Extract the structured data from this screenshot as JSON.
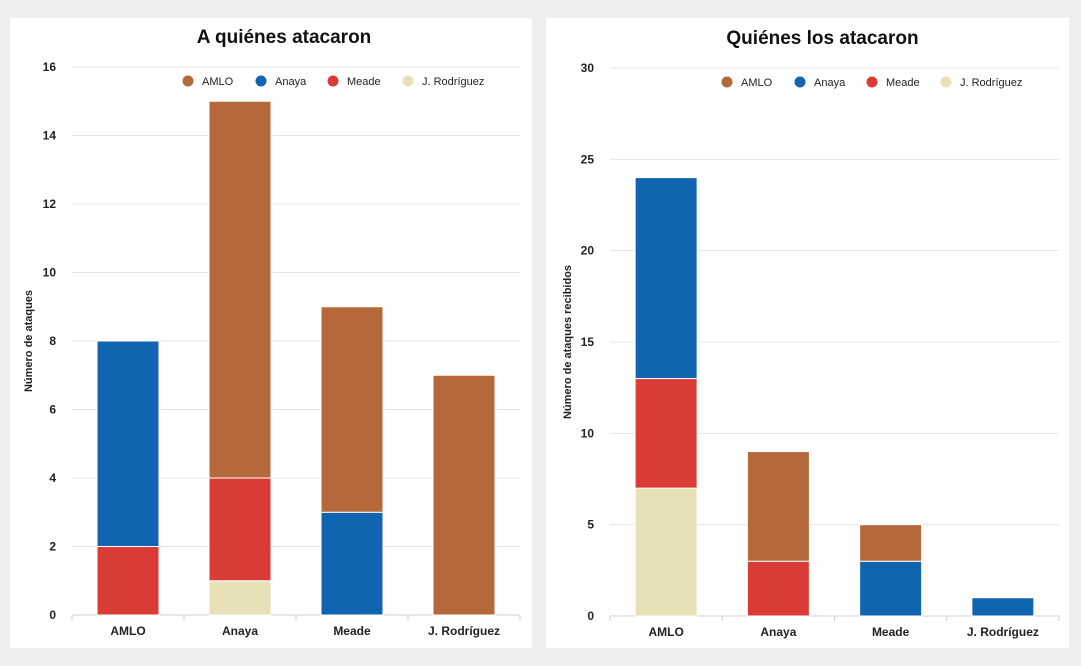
{
  "chart_data": [
    {
      "type": "bar",
      "stacked": true,
      "title": "A quiénes atacaron",
      "xlabel": "",
      "ylabel": "Número de ataques",
      "categories": [
        "AMLO",
        "Anaya",
        "Meade",
        "J. Rodríguez"
      ],
      "yticks": [
        0,
        2,
        4,
        6,
        8,
        10,
        12,
        14,
        16
      ],
      "ylim": [
        0,
        16
      ],
      "legend_position": "top-right",
      "series": [
        {
          "name": "J. Rodríguez",
          "color": "#e8e0b6",
          "values": [
            0,
            1,
            0,
            0
          ]
        },
        {
          "name": "Meade",
          "color": "#d93c35",
          "values": [
            2,
            3,
            0,
            0
          ]
        },
        {
          "name": "Anaya",
          "color": "#1064b0",
          "values": [
            6,
            0,
            3,
            0
          ]
        },
        {
          "name": "AMLO",
          "color": "#b5683a",
          "values": [
            0,
            11,
            6,
            7
          ]
        }
      ],
      "legend": [
        "AMLO",
        "Anaya",
        "Meade",
        "J. Rodríguez"
      ]
    },
    {
      "type": "bar",
      "stacked": true,
      "title": "Quiénes los atacaron",
      "xlabel": "",
      "ylabel": "Número de ataques recibidos",
      "categories": [
        "AMLO",
        "Anaya",
        "Meade",
        "J. Rodríguez"
      ],
      "yticks": [
        0,
        5,
        10,
        15,
        20,
        25,
        30
      ],
      "ylim": [
        0,
        30
      ],
      "legend_position": "top-right",
      "series": [
        {
          "name": "J. Rodríguez",
          "color": "#e8e0b6",
          "values": [
            7,
            0,
            0,
            0
          ]
        },
        {
          "name": "Meade",
          "color": "#d93c35",
          "values": [
            6,
            3,
            0,
            0
          ]
        },
        {
          "name": "Anaya",
          "color": "#1064b0",
          "values": [
            11,
            0,
            3,
            1
          ]
        },
        {
          "name": "AMLO",
          "color": "#b5683a",
          "values": [
            0,
            6,
            2,
            0
          ]
        }
      ],
      "legend": [
        "AMLO",
        "Anaya",
        "Meade",
        "J. Rodríguez"
      ]
    }
  ]
}
